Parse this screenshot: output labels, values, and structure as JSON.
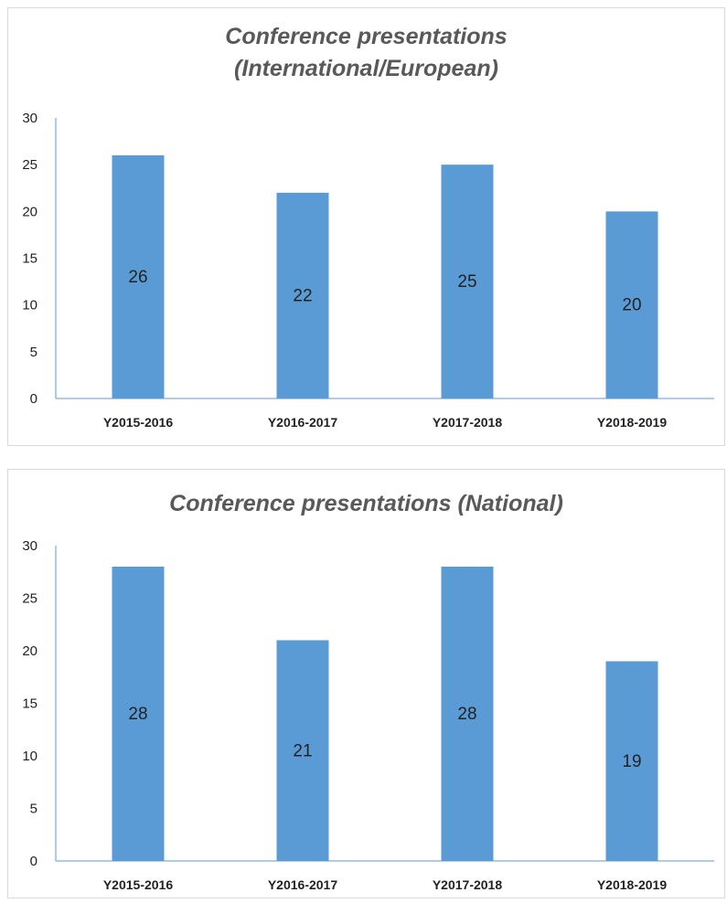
{
  "colors": {
    "bar": "#5b9bd5",
    "axis": "#5b9bd5",
    "text": "#222222",
    "title": "#595959"
  },
  "chart_data": [
    {
      "type": "bar",
      "title_lines": [
        "Conference presentations",
        "(International/European)"
      ],
      "categories": [
        "Y2015-2016",
        "Y2016-2017",
        "Y2017-2018",
        "Y2018-2019"
      ],
      "values": [
        26,
        22,
        25,
        20
      ],
      "yticks": [
        0,
        5,
        10,
        15,
        20,
        25,
        30
      ],
      "ylim": [
        0,
        30
      ],
      "grid": false,
      "legend": "none"
    },
    {
      "type": "bar",
      "title_lines": [
        "Conference presentations (National)"
      ],
      "categories": [
        "Y2015-2016",
        "Y2016-2017",
        "Y2017-2018",
        "Y2018-2019"
      ],
      "values": [
        28,
        21,
        28,
        19
      ],
      "yticks": [
        0,
        5,
        10,
        15,
        20,
        25,
        30
      ],
      "ylim": [
        0,
        30
      ],
      "grid": false,
      "legend": "none"
    }
  ]
}
